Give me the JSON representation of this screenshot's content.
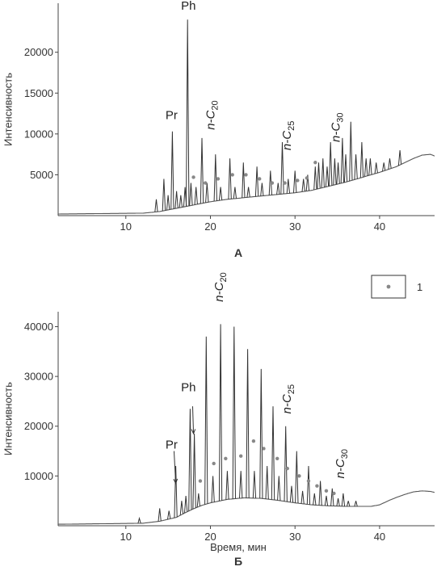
{
  "chart_data": [
    {
      "type": "line",
      "panel_label": "А",
      "ylabel": "Интенсивность",
      "xlabel": "",
      "xlim": [
        2,
        46.5
      ],
      "ylim": [
        0,
        26000
      ],
      "x_ticks": [
        10,
        20,
        30,
        40
      ],
      "y_ticks": [
        5000,
        10000,
        15000,
        20000
      ],
      "baseline": [
        [
          2,
          200
        ],
        [
          12,
          300
        ],
        [
          14,
          500
        ],
        [
          16,
          900
        ],
        [
          18,
          1300
        ],
        [
          20,
          1700
        ],
        [
          22,
          2000
        ],
        [
          24,
          2200
        ],
        [
          26,
          2400
        ],
        [
          28,
          2600
        ],
        [
          30,
          2800
        ],
        [
          32,
          3100
        ],
        [
          34,
          3600
        ],
        [
          36,
          4100
        ],
        [
          38,
          4700
        ],
        [
          40,
          5300
        ],
        [
          42,
          6000
        ],
        [
          43,
          6500
        ],
        [
          44,
          7000
        ],
        [
          45,
          7400
        ],
        [
          46,
          7500
        ],
        [
          46.5,
          7300
        ]
      ],
      "peaks": [
        {
          "x": 13.6,
          "y": 2000
        },
        {
          "x": 14.5,
          "y": 4500
        },
        {
          "x": 15.0,
          "y": 2500
        },
        {
          "x": 15.5,
          "y": 10300
        },
        {
          "x": 16.0,
          "y": 3000
        },
        {
          "x": 16.5,
          "y": 2500
        },
        {
          "x": 17.0,
          "y": 3500
        },
        {
          "x": 17.3,
          "y": 24000
        },
        {
          "x": 17.7,
          "y": 4000
        },
        {
          "x": 18.3,
          "y": 3500
        },
        {
          "x": 19.0,
          "y": 9500
        },
        {
          "x": 19.6,
          "y": 4000
        },
        {
          "x": 20.6,
          "y": 7500
        },
        {
          "x": 21.2,
          "y": 3500
        },
        {
          "x": 22.3,
          "y": 7000
        },
        {
          "x": 22.9,
          "y": 3500
        },
        {
          "x": 23.9,
          "y": 6500
        },
        {
          "x": 24.5,
          "y": 3500
        },
        {
          "x": 25.5,
          "y": 6000
        },
        {
          "x": 26.1,
          "y": 4000
        },
        {
          "x": 27.1,
          "y": 5500
        },
        {
          "x": 28.0,
          "y": 4000
        },
        {
          "x": 28.5,
          "y": 9000
        },
        {
          "x": 29.2,
          "y": 4500
        },
        {
          "x": 30.0,
          "y": 5500
        },
        {
          "x": 31.0,
          "y": 4500
        },
        {
          "x": 31.5,
          "y": 5000
        },
        {
          "x": 32.4,
          "y": 6000
        },
        {
          "x": 32.8,
          "y": 6500
        },
        {
          "x": 33.3,
          "y": 7000
        },
        {
          "x": 33.8,
          "y": 6000
        },
        {
          "x": 34.2,
          "y": 9000
        },
        {
          "x": 34.7,
          "y": 7000
        },
        {
          "x": 35.1,
          "y": 6500
        },
        {
          "x": 35.6,
          "y": 9500
        },
        {
          "x": 36.0,
          "y": 7500
        },
        {
          "x": 36.6,
          "y": 11500
        },
        {
          "x": 37.2,
          "y": 7500
        },
        {
          "x": 37.9,
          "y": 9000
        },
        {
          "x": 38.4,
          "y": 7000
        },
        {
          "x": 38.9,
          "y": 7000
        },
        {
          "x": 39.6,
          "y": 6500
        },
        {
          "x": 40.5,
          "y": 6500
        },
        {
          "x": 41.2,
          "y": 7000
        },
        {
          "x": 42.4,
          "y": 8000
        }
      ],
      "markers": [
        {
          "x": 18.0,
          "y": 4700
        },
        {
          "x": 19.4,
          "y": 4000
        },
        {
          "x": 20.9,
          "y": 4500
        },
        {
          "x": 22.6,
          "y": 5000
        },
        {
          "x": 24.2,
          "y": 5000
        },
        {
          "x": 25.8,
          "y": 4500
        },
        {
          "x": 27.3,
          "y": 4000
        },
        {
          "x": 28.8,
          "y": 4000
        },
        {
          "x": 30.3,
          "y": 4300
        },
        {
          "x": 31.4,
          "y": 4600
        },
        {
          "x": 32.4,
          "y": 6500
        }
      ],
      "annotations": [
        {
          "kind": "plain",
          "text": "Pr",
          "x": 15.4,
          "y": 11800
        },
        {
          "kind": "plain",
          "text": "Ph",
          "x": 17.4,
          "y": 25200
        },
        {
          "kind": "carbon",
          "prefix": "n-C",
          "sub": "20",
          "x": 20.5,
          "y": 10500
        },
        {
          "kind": "carbon",
          "prefix": "n-C",
          "sub": "25",
          "x": 29.5,
          "y": 8000
        },
        {
          "kind": "carbon",
          "prefix": "n-C",
          "sub": "30",
          "x": 35.3,
          "y": 9000
        }
      ],
      "arrows": []
    },
    {
      "type": "line",
      "panel_label": "Б",
      "ylabel": "Интенсивность",
      "xlabel": "Время, мин",
      "xlim": [
        2,
        46.5
      ],
      "ylim": [
        0,
        43000
      ],
      "x_ticks": [
        10,
        20,
        30,
        40
      ],
      "y_ticks": [
        10000,
        20000,
        30000,
        40000
      ],
      "baseline": [
        [
          2,
          300
        ],
        [
          12,
          500
        ],
        [
          14,
          900
        ],
        [
          16,
          1700
        ],
        [
          17,
          2600
        ],
        [
          18,
          3400
        ],
        [
          19,
          4100
        ],
        [
          20,
          4600
        ],
        [
          22,
          5300
        ],
        [
          24,
          5600
        ],
        [
          26,
          5500
        ],
        [
          28,
          5100
        ],
        [
          30,
          4600
        ],
        [
          32,
          4200
        ],
        [
          34,
          4000
        ],
        [
          36,
          3900
        ],
        [
          38,
          3900
        ],
        [
          39,
          3900
        ],
        [
          40,
          4200
        ],
        [
          41,
          5000
        ],
        [
          42,
          5700
        ],
        [
          43,
          6300
        ],
        [
          44,
          6800
        ],
        [
          45,
          7000
        ],
        [
          46,
          6900
        ],
        [
          46.5,
          6700
        ]
      ],
      "peaks": [
        {
          "x": 11.6,
          "y": 1500
        },
        {
          "x": 14.0,
          "y": 3500
        },
        {
          "x": 15.1,
          "y": 3000
        },
        {
          "x": 15.9,
          "y": 12000
        },
        {
          "x": 16.6,
          "y": 5000
        },
        {
          "x": 17.1,
          "y": 6000
        },
        {
          "x": 17.6,
          "y": 23500
        },
        {
          "x": 18.1,
          "y": 18500
        },
        {
          "x": 18.6,
          "y": 6500
        },
        {
          "x": 19.5,
          "y": 38000
        },
        {
          "x": 20.3,
          "y": 10000
        },
        {
          "x": 21.2,
          "y": 40500
        },
        {
          "x": 22.0,
          "y": 11000
        },
        {
          "x": 22.8,
          "y": 40000
        },
        {
          "x": 23.6,
          "y": 11000
        },
        {
          "x": 24.4,
          "y": 35500
        },
        {
          "x": 25.2,
          "y": 11000
        },
        {
          "x": 26.0,
          "y": 31500
        },
        {
          "x": 26.7,
          "y": 12000
        },
        {
          "x": 27.4,
          "y": 24000
        },
        {
          "x": 28.1,
          "y": 10000
        },
        {
          "x": 28.9,
          "y": 20000
        },
        {
          "x": 29.6,
          "y": 8000
        },
        {
          "x": 30.2,
          "y": 15000
        },
        {
          "x": 30.9,
          "y": 7000
        },
        {
          "x": 31.6,
          "y": 12000
        },
        {
          "x": 32.3,
          "y": 6500
        },
        {
          "x": 33.0,
          "y": 9000
        },
        {
          "x": 33.7,
          "y": 6000
        },
        {
          "x": 34.4,
          "y": 7500
        },
        {
          "x": 35.1,
          "y": 5500
        },
        {
          "x": 35.7,
          "y": 6500
        },
        {
          "x": 36.3,
          "y": 5000
        },
        {
          "x": 37.2,
          "y": 5000
        }
      ],
      "markers": [
        {
          "x": 18.8,
          "y": 9000
        },
        {
          "x": 20.4,
          "y": 12500
        },
        {
          "x": 21.8,
          "y": 13500
        },
        {
          "x": 23.6,
          "y": 14000
        },
        {
          "x": 25.1,
          "y": 17000
        },
        {
          "x": 26.3,
          "y": 15500
        },
        {
          "x": 27.9,
          "y": 13500
        },
        {
          "x": 29.1,
          "y": 11500
        },
        {
          "x": 30.5,
          "y": 10000
        },
        {
          "x": 31.6,
          "y": 9000
        },
        {
          "x": 32.6,
          "y": 8000
        },
        {
          "x": 33.7,
          "y": 7000
        },
        {
          "x": 34.6,
          "y": 6500
        }
      ],
      "annotations": [
        {
          "kind": "plain",
          "text": "Pr",
          "x": 15.4,
          "y": 15500
        },
        {
          "kind": "plain",
          "text": "Ph",
          "x": 17.4,
          "y": 27000
        },
        {
          "kind": "carbon",
          "prefix": "n-C",
          "sub": "20",
          "x": 21.5,
          "y": 45000
        },
        {
          "kind": "carbon",
          "prefix": "n-C",
          "sub": "25",
          "x": 29.5,
          "y": 22500
        },
        {
          "kind": "carbon",
          "prefix": "n-C",
          "sub": "30",
          "x": 35.8,
          "y": 9500
        }
      ],
      "arrows": [
        {
          "from": [
            15.7,
            15000
          ],
          "to": [
            15.9,
            8500
          ]
        },
        {
          "from": [
            17.9,
            24000
          ],
          "to": [
            18.0,
            18500
          ]
        }
      ],
      "legend": {
        "text": "1"
      }
    }
  ]
}
